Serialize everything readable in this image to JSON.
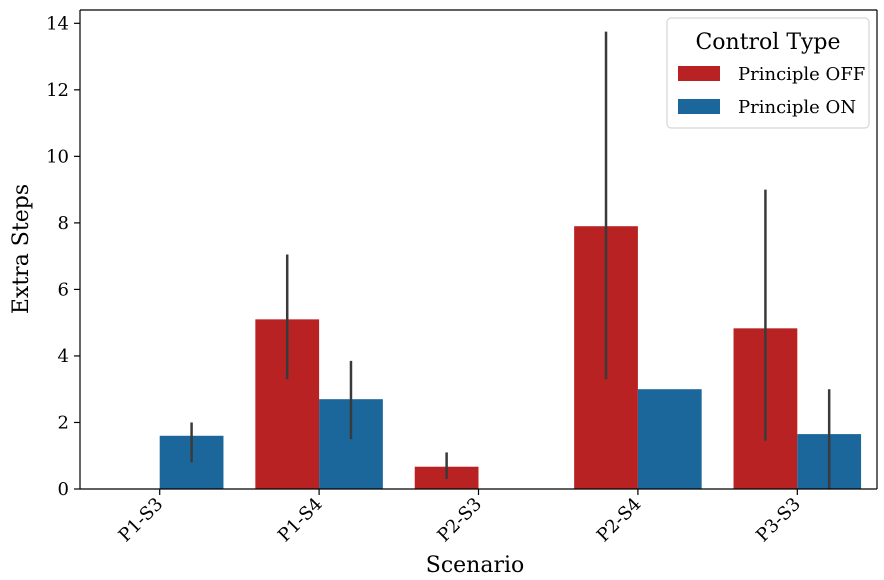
{
  "chart_data": {
    "type": "bar",
    "title": "",
    "xlabel": "Scenario",
    "ylabel": "Extra Steps",
    "categories": [
      "P1-S3",
      "P1-S4",
      "P2-S3",
      "P2-S4",
      "P3-S3"
    ],
    "ylim": [
      0,
      14.4
    ],
    "yticks": [
      0,
      2,
      4,
      6,
      8,
      10,
      12,
      14
    ],
    "grid": false,
    "legend": {
      "title": "Control Type",
      "position": "top-right"
    },
    "series": [
      {
        "name": "Principle OFF",
        "color": "#d62728",
        "values": [
          0,
          5.1,
          0.67,
          7.9,
          4.83
        ],
        "error_low": [
          0,
          3.3,
          0.3,
          3.3,
          1.45
        ],
        "error_high": [
          0,
          7.05,
          1.1,
          13.75,
          9.0
        ]
      },
      {
        "name": "Principle ON",
        "color": "#1f77b4",
        "values": [
          1.6,
          2.7,
          0,
          3.0,
          1.65
        ],
        "error_low": [
          0.8,
          1.5,
          0,
          3.0,
          0
        ],
        "error_high": [
          2.0,
          3.85,
          0,
          3.0,
          3.0
        ]
      }
    ]
  }
}
